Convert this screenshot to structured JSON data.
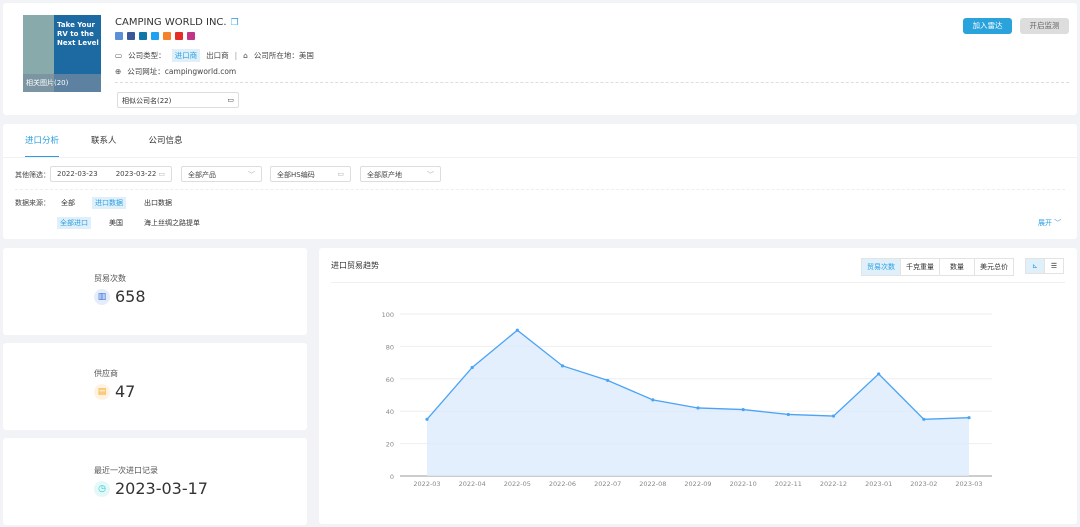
{
  "company": {
    "name": "CAMPING WORLD INC.",
    "logo_text": "Take Your RV to the Next Level",
    "related_images": "相关图片(20)",
    "social_icons": [
      {
        "name": "web-icon",
        "color": "#5b8fd6"
      },
      {
        "name": "facebook-icon",
        "color": "#3b5998"
      },
      {
        "name": "linkedin-icon",
        "color": "#0e76a8"
      },
      {
        "name": "twitter-icon",
        "color": "#1da1f2"
      },
      {
        "name": "phone-icon",
        "color": "#f5822a"
      },
      {
        "name": "youtube-icon",
        "color": "#e52d27"
      },
      {
        "name": "instagram-icon",
        "color": "#c13584"
      }
    ],
    "type_label": "公司类型：",
    "type_options": [
      "进口商",
      "出口商"
    ],
    "location_label": "公司所在地：",
    "location": "美国",
    "website_label": "公司网址：",
    "website": "campingworld.com",
    "similar": "相似公司名(22)",
    "add_radar": "加入雷达",
    "monitor": "开启监测"
  },
  "tabs": [
    "进口分析",
    "联系人",
    "公司信息"
  ],
  "filters": {
    "label": "其他筛选：",
    "date_from": "2022-03-23",
    "date_to": "2023-03-22",
    "product": "全部产品",
    "hs": "全部HS编码",
    "origin": "全部原产地",
    "source_label": "数据来源：",
    "sources": [
      "全部",
      "进口数据",
      "出口数据"
    ],
    "sub_sources": [
      "全部进口",
      "美国",
      "海上丝绸之路提单"
    ],
    "expand": "展开"
  },
  "stats": [
    {
      "label": "贸易次数",
      "value": "658",
      "icon": "bar-chart-icon",
      "color": "#3a6fd8"
    },
    {
      "label": "供应商",
      "value": "47",
      "icon": "store-icon",
      "color": "#f5a623"
    },
    {
      "label": "最近一次进口记录",
      "value": "2023-03-17",
      "icon": "clock-icon",
      "color": "#2ec7c9"
    }
  ],
  "chart": {
    "title": "进口贸易趋势",
    "metrics": [
      "贸易次数",
      "千克重量",
      "数量",
      "美元总价"
    ],
    "active_metric": "贸易次数"
  },
  "chart_data": {
    "type": "area",
    "categories": [
      "2022-03",
      "2022-04",
      "2022-05",
      "2022-06",
      "2022-07",
      "2022-08",
      "2022-09",
      "2022-10",
      "2022-11",
      "2022-12",
      "2023-01",
      "2023-02",
      "2023-03"
    ],
    "values": [
      35,
      67,
      90,
      68,
      59,
      47,
      42,
      41,
      38,
      37,
      63,
      35,
      36
    ],
    "ylim": [
      0,
      100
    ],
    "yticks": [
      0,
      20,
      40,
      60,
      80,
      100
    ],
    "grid": true,
    "color": "#4aa3f5"
  }
}
